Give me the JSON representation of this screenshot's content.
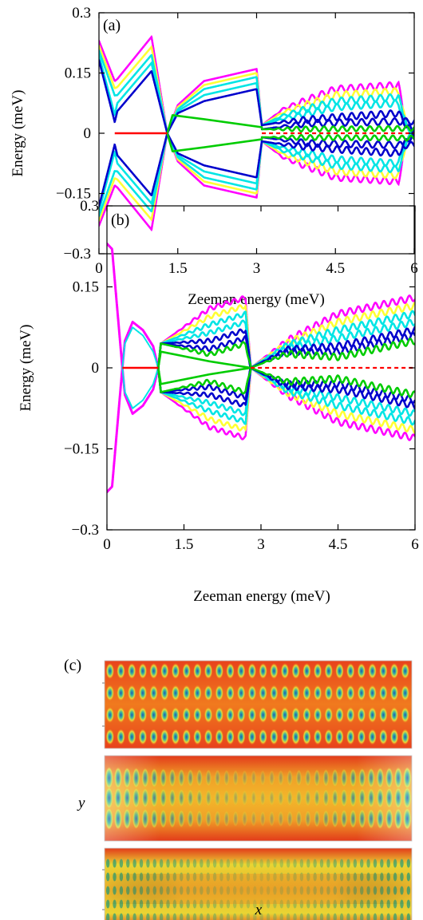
{
  "chart_data": [
    {
      "panel": "(a)",
      "type": "scatter",
      "xlabel": "Zeeman energy (meV)",
      "ylabel": "Energy (meV)",
      "xlim": [
        0,
        6
      ],
      "ylim": [
        -0.3,
        0.3
      ],
      "x_ticks": [
        "0",
        "1.5",
        "3",
        "4.5",
        "6"
      ],
      "y_ticks": [
        "0.3",
        "0.15",
        "0",
        "−0.15",
        "−0.3"
      ],
      "grid": false,
      "legend": "none",
      "series_colors": [
        "#ff00ff",
        "#ffff33",
        "#00e5e5",
        "#0000cc",
        "#00cc00",
        "#ff0000"
      ],
      "band_shape": {
        "gap_closings_x": [
          0.3,
          1.3,
          3.1
        ],
        "zero_mode_range_x": [
          0.3,
          1.3
        ],
        "max_energy_0": 0.23,
        "max_energy_1_3": 0.24,
        "max_energy_3_1": 0.16,
        "max_energy_6": 0.12
      }
    },
    {
      "panel": "(b)",
      "type": "scatter",
      "xlabel": "Zeeman energy (meV)",
      "ylabel": "Energy (meV)",
      "xlim": [
        0,
        6
      ],
      "ylim": [
        -0.3,
        0.3
      ],
      "x_ticks": [
        "0",
        "1.5",
        "3",
        "4.5",
        "6"
      ],
      "y_ticks": [
        "0.3",
        "0.15",
        "0",
        "−0.15",
        "−0.3"
      ],
      "grid": false,
      "legend": "none",
      "series_colors": [
        "#ff00ff",
        "#ffff33",
        "#00e5e5",
        "#0000cc",
        "#00cc00",
        "#ff0000"
      ],
      "band_shape": {
        "gap_closings_x": [
          0.3,
          1.0,
          2.8
        ],
        "zero_mode_range_x": [
          0.3,
          1.0
        ],
        "max_energy_0": 0.23,
        "max_energy_0_5": 0.085,
        "max_energy_2_8": 0.13,
        "max_energy_6": 0.13
      }
    },
    {
      "panel": "(c)",
      "type": "heatmap",
      "xlabel": "x",
      "ylabel": "y",
      "subpanels": 3
    }
  ]
}
